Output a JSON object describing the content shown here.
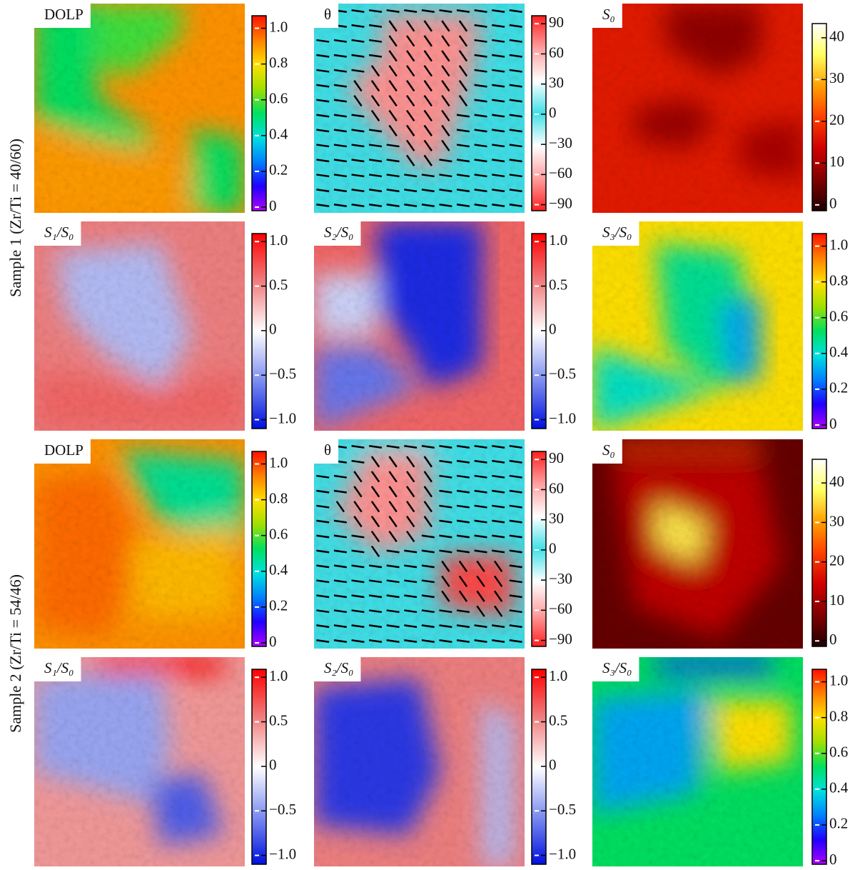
{
  "row_labels": [
    "Sample 1 (Zr/Ti = 40/60)",
    "Sample 2 (Zr/Ti = 54/46)"
  ],
  "colormaps": {
    "jet": [
      "#b000ff",
      "#2000ff",
      "#0080ff",
      "#00e0e0",
      "#00e060",
      "#a0e000",
      "#ffe000",
      "#ff8000",
      "#ff1000"
    ],
    "theta": [
      "#ff2020",
      "#ffa0a0",
      "#ffffff",
      "#40e0e8",
      "#ffffff",
      "#ffa0a0",
      "#ff2020"
    ],
    "hot": [
      "#200000",
      "#800000",
      "#d00000",
      "#ff4000",
      "#ffa000",
      "#ffff60",
      "#ffffff"
    ],
    "bwr": [
      "#0010e0",
      "#8090f0",
      "#ffffff",
      "#f08080",
      "#ff0000"
    ]
  },
  "panels": [
    [
      {
        "label": "DOLP",
        "colormap": "jet",
        "clim": [
          -0.02,
          1.07
        ],
        "cticks": [
          0,
          0.2,
          0.4,
          0.6,
          0.8,
          {
            "value": 1,
            "label": "1.0"
          }
        ]
      },
      {
        "label": "θ",
        "colormap": "theta",
        "clim": [
          -96,
          98
        ],
        "cticks": [
          {
            "value": -90,
            "label": "−90"
          },
          {
            "value": -60,
            "label": "−60"
          },
          {
            "value": -30,
            "label": "−30"
          },
          0,
          30,
          60,
          90
        ]
      },
      {
        "label": "S₀",
        "colormap": "hot",
        "clim": [
          -1.4,
          43.4
        ],
        "cticks": [
          0,
          10,
          20,
          30,
          40
        ]
      }
    ],
    [
      {
        "label": "S₁/S₀",
        "colormap": "bwr",
        "clim": [
          -1.1,
          1.09
        ],
        "cticks": [
          {
            "value": -1,
            "label": "−1.0"
          },
          {
            "value": -0.5,
            "label": "−0.5"
          },
          0,
          0.5,
          {
            "value": 1,
            "label": "1.0"
          }
        ]
      },
      {
        "label": "S₂/S₀",
        "colormap": "bwr",
        "clim": [
          -1.1,
          1.09
        ],
        "cticks": [
          {
            "value": -1,
            "label": "−1.0"
          },
          {
            "value": -0.5,
            "label": "−0.5"
          },
          0,
          0.5,
          {
            "value": 1,
            "label": "1.0"
          }
        ]
      },
      {
        "label": "S₃/S₀",
        "colormap": "jet",
        "clim": [
          -0.02,
          1.07
        ],
        "cticks": [
          0,
          0.2,
          0.4,
          0.6,
          0.8,
          {
            "value": 1,
            "label": "1.0"
          }
        ]
      }
    ],
    [
      {
        "label": "DOLP",
        "colormap": "jet",
        "clim": [
          -0.02,
          1.07
        ],
        "cticks": [
          0,
          0.2,
          0.4,
          0.6,
          0.8,
          {
            "value": 1,
            "label": "1.0"
          }
        ]
      },
      {
        "label": "θ",
        "colormap": "theta",
        "clim": [
          -96,
          98
        ],
        "cticks": [
          {
            "value": -90,
            "label": "−90"
          },
          {
            "value": -60,
            "label": "−60"
          },
          {
            "value": -30,
            "label": "−30"
          },
          0,
          30,
          60,
          90
        ]
      },
      {
        "label": "S₀",
        "colormap": "hot",
        "clim": [
          -1.4,
          46
        ],
        "cticks": [
          0,
          10,
          20,
          30,
          40
        ]
      }
    ],
    [
      {
        "label": "S₁/S₀",
        "colormap": "bwr",
        "clim": [
          -1.1,
          1.09
        ],
        "cticks": [
          {
            "value": -1,
            "label": "−1.0"
          },
          {
            "value": -0.5,
            "label": "−0.5"
          },
          0,
          0.5,
          {
            "value": 1,
            "label": "1.0"
          }
        ]
      },
      {
        "label": "S₂/S₀",
        "colormap": "bwr",
        "clim": [
          -1.1,
          1.09
        ],
        "cticks": [
          {
            "value": -1,
            "label": "−1.0"
          },
          {
            "value": -0.5,
            "label": "−0.5"
          },
          0,
          0.5,
          {
            "value": 1,
            "label": "1.0"
          }
        ]
      },
      {
        "label": "S₃/S₀",
        "colormap": "jet",
        "clim": [
          -0.02,
          1.07
        ],
        "cticks": [
          0,
          0.2,
          0.4,
          0.6,
          0.8,
          {
            "value": 1,
            "label": "1.0"
          }
        ]
      }
    ]
  ]
}
